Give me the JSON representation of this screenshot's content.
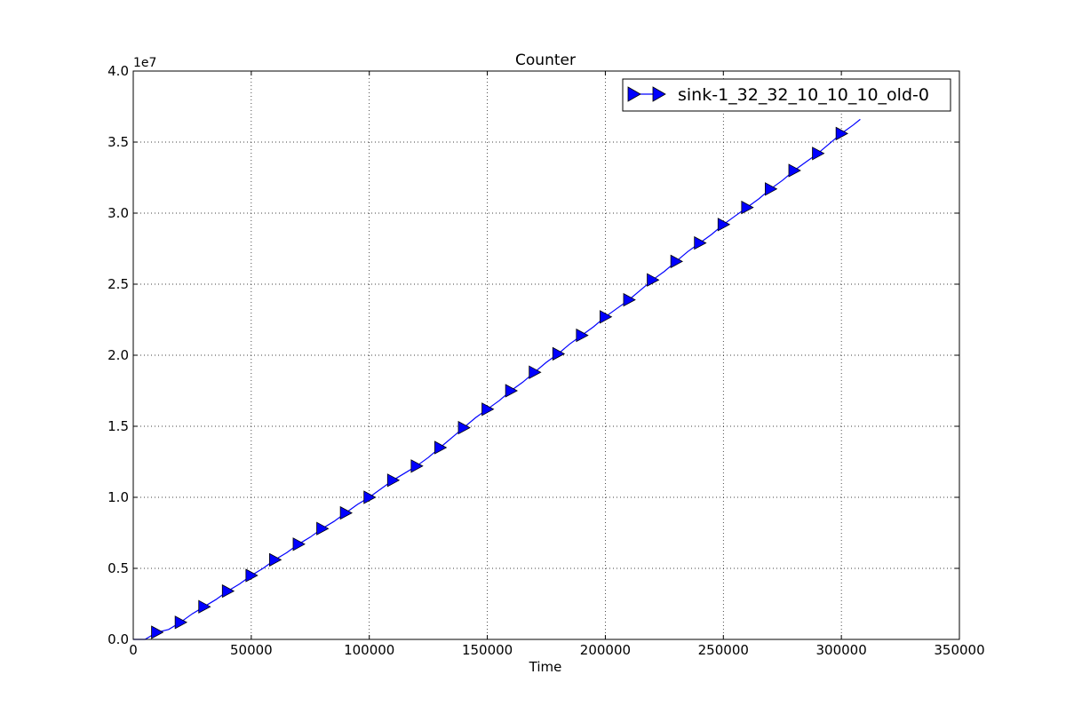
{
  "chart_data": {
    "type": "line",
    "title": "Counter",
    "xlabel": "Time",
    "ylabel": "",
    "xlim": [
      0,
      350000
    ],
    "ylim": [
      0,
      40000000
    ],
    "y_offset_label": "1e7",
    "xticks": [
      0,
      50000,
      100000,
      150000,
      200000,
      250000,
      300000,
      350000
    ],
    "xtick_labels": [
      "0",
      "50000",
      "100000",
      "150000",
      "200000",
      "250000",
      "300000",
      "350000"
    ],
    "yticks": [
      0,
      5000000,
      10000000,
      15000000,
      20000000,
      25000000,
      30000000,
      35000000,
      40000000
    ],
    "ytick_labels": [
      "0.0",
      "0.5",
      "1.0",
      "1.5",
      "2.0",
      "2.5",
      "3.0",
      "3.5",
      "4.0"
    ],
    "grid": true,
    "legend_position": "top-right",
    "series": [
      {
        "name": "sink-1_32_32_10_10_10_old-0",
        "color": "#0000ff",
        "marker": "triangle-right",
        "line_x": [
          0,
          5000,
          10000,
          15000,
          20000,
          25000,
          30000,
          35000,
          40000,
          45000,
          50000,
          55000,
          60000,
          65000,
          70000,
          75000,
          80000,
          85000,
          90000,
          95000,
          100000,
          105000,
          110000,
          115000,
          120000,
          125000,
          130000,
          135000,
          140000,
          145000,
          150000,
          155000,
          160000,
          165000,
          170000,
          175000,
          180000,
          185000,
          190000,
          195000,
          200000,
          205000,
          210000,
          215000,
          220000,
          225000,
          230000,
          235000,
          240000,
          245000,
          250000,
          255000,
          260000,
          265000,
          270000,
          275000,
          280000,
          285000,
          290000,
          295000,
          300000,
          305000,
          308000
        ],
        "line_y": [
          0,
          0,
          500000,
          700000,
          1200000,
          1800000,
          2300000,
          2800000,
          3400000,
          3900000,
          4500000,
          5000000,
          5600000,
          6100000,
          6700000,
          7200000,
          7800000,
          8300000,
          8900000,
          9500000,
          10000000,
          10600000,
          11200000,
          11700000,
          12200000,
          12800000,
          13500000,
          14200000,
          14900000,
          15600000,
          16200000,
          16800000,
          17500000,
          18100000,
          18800000,
          19500000,
          20100000,
          20800000,
          21400000,
          22000000,
          22700000,
          23300000,
          23900000,
          24600000,
          25300000,
          25900000,
          26600000,
          27300000,
          27900000,
          28500000,
          29200000,
          29800000,
          30400000,
          31000000,
          31700000,
          32300000,
          33000000,
          33600000,
          34200000,
          34900000,
          35600000,
          36200000,
          36600000
        ],
        "marker_x": [
          10000,
          20000,
          30000,
          40000,
          50000,
          60000,
          70000,
          80000,
          90000,
          100000,
          110000,
          120000,
          130000,
          140000,
          150000,
          160000,
          170000,
          180000,
          190000,
          200000,
          210000,
          220000,
          230000,
          240000,
          250000,
          260000,
          270000,
          280000,
          290000,
          300000
        ],
        "marker_y": [
          500000,
          1200000,
          2300000,
          3400000,
          4500000,
          5600000,
          6700000,
          7800000,
          8900000,
          10000000,
          11200000,
          12200000,
          13500000,
          14900000,
          16200000,
          17500000,
          18800000,
          20100000,
          21400000,
          22700000,
          23900000,
          25300000,
          26600000,
          27900000,
          29200000,
          30400000,
          31700000,
          33000000,
          34200000,
          35600000
        ]
      }
    ]
  }
}
